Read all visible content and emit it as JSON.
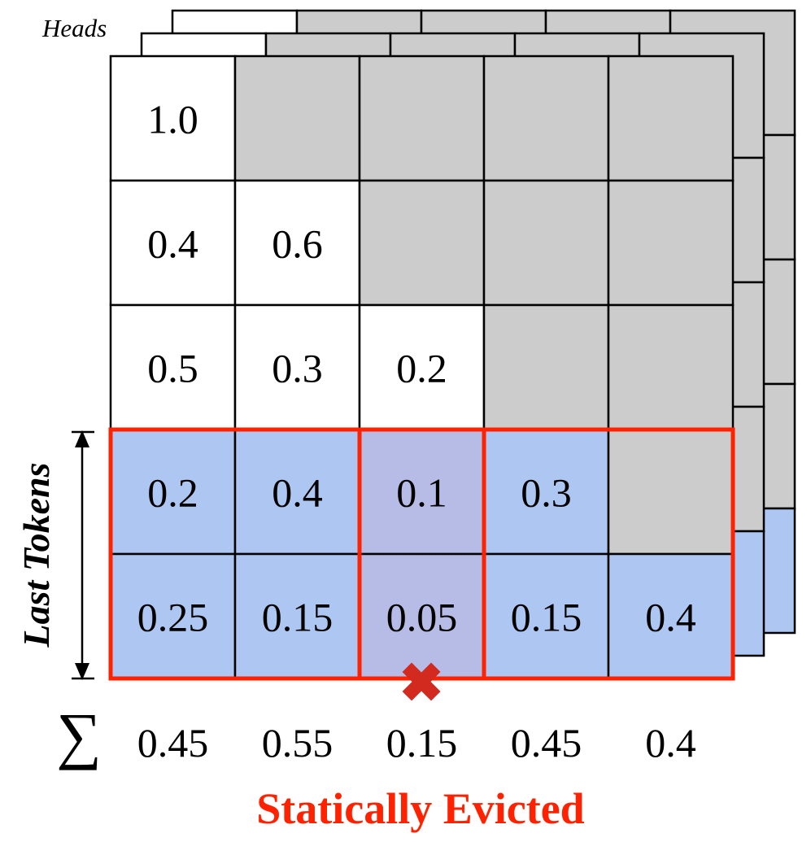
{
  "labels": {
    "heads": "Heads",
    "last_tokens": "Last Tokens",
    "statically_evicted": "Statically Evicted",
    "sum_symbol": "∑",
    "evict_mark": "✖"
  },
  "matrix": {
    "rows": [
      [
        "1.0",
        "",
        "",
        "",
        ""
      ],
      [
        "0.4",
        "0.6",
        "",
        "",
        ""
      ],
      [
        "0.5",
        "0.3",
        "0.2",
        "",
        ""
      ],
      [
        "0.2",
        "0.4",
        "0.1",
        "0.3",
        ""
      ],
      [
        "0.25",
        "0.15",
        "0.05",
        "0.15",
        "0.4"
      ]
    ],
    "masked": [
      [
        false,
        true,
        true,
        true,
        true
      ],
      [
        false,
        false,
        true,
        true,
        true
      ],
      [
        false,
        false,
        false,
        true,
        true
      ],
      [
        false,
        false,
        false,
        false,
        true
      ],
      [
        false,
        false,
        false,
        false,
        false
      ]
    ],
    "window_rows": [
      3,
      4
    ],
    "evicted_column": 2
  },
  "column_sums": [
    "0.45",
    "0.55",
    "0.15",
    "0.45",
    "0.4"
  ],
  "colors": {
    "masked": "#cccccc",
    "window": "#adc6f2",
    "evicted": "#b6bce6",
    "highlight": "#ff2200",
    "evict_mark": "#d22a1e",
    "grid": "#000000"
  }
}
